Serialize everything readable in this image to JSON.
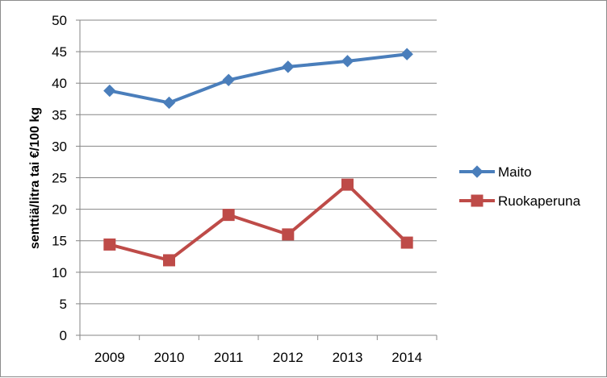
{
  "chart_data": {
    "type": "line",
    "categories": [
      "2009",
      "2010",
      "2011",
      "2012",
      "2013",
      "2014"
    ],
    "series": [
      {
        "name": "Maito",
        "values": [
          38.8,
          36.9,
          40.5,
          42.6,
          43.5,
          44.6
        ],
        "color": "#4a7ebb",
        "marker": "diamond"
      },
      {
        "name": "Ruokaperuna",
        "values": [
          14.4,
          11.9,
          19.1,
          16.0,
          23.9,
          14.7
        ],
        "color": "#be4b48",
        "marker": "square"
      }
    ],
    "title": "",
    "xlabel": "",
    "ylabel": "senttiä/litra tai €/100 kg",
    "ylim": [
      0,
      50
    ],
    "yticks": [
      "0",
      "5",
      "10",
      "15",
      "20",
      "25",
      "30",
      "35",
      "40",
      "45",
      "50"
    ],
    "grid": true,
    "legend_position": "right"
  }
}
